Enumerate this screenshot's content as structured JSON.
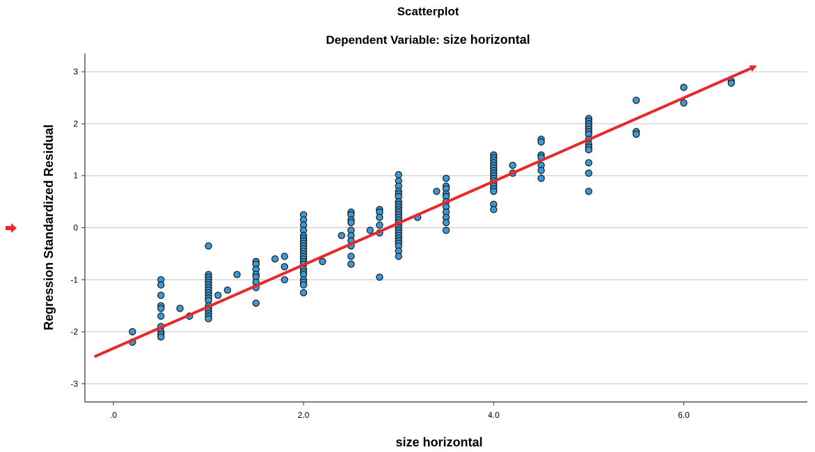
{
  "chart_data": {
    "type": "scatter",
    "title": "Scatterplot",
    "subtitle_prefix": "Dependent Variable: ",
    "subtitle_bold": "size horizontal",
    "xlabel": "size horizontal",
    "ylabel": "Regression Standardized Residual",
    "xlim": [
      -0.3,
      7.3
    ],
    "ylim": [
      -3.35,
      3.35
    ],
    "x_ticks": [
      0,
      2,
      4,
      6
    ],
    "x_tick_labels": [
      ".0",
      "2.0",
      "4.0",
      "6.0"
    ],
    "y_ticks": [
      3,
      2,
      1,
      0,
      -1,
      -2,
      -3
    ],
    "y_tick_labels": [
      "3",
      "2",
      "1",
      "0",
      "-1",
      "-2",
      "-3"
    ],
    "grid": "horizontal",
    "marker_color": "#3b9ad6",
    "marker_edge": "#1a1a1a",
    "points": [
      [
        0.2,
        -2.0
      ],
      [
        0.2,
        -2.2
      ],
      [
        0.5,
        -1.0
      ],
      [
        0.5,
        -1.1
      ],
      [
        0.5,
        -1.3
      ],
      [
        0.5,
        -1.5
      ],
      [
        0.5,
        -1.55
      ],
      [
        0.5,
        -1.7
      ],
      [
        0.5,
        -1.9
      ],
      [
        0.5,
        -2.0
      ],
      [
        0.5,
        -2.05
      ],
      [
        0.5,
        -2.1
      ],
      [
        0.7,
        -1.55
      ],
      [
        0.8,
        -1.7
      ],
      [
        1.0,
        -0.35
      ],
      [
        1.0,
        -0.9
      ],
      [
        1.0,
        -0.95
      ],
      [
        1.0,
        -1.0
      ],
      [
        1.0,
        -1.05
      ],
      [
        1.0,
        -1.1
      ],
      [
        1.0,
        -1.15
      ],
      [
        1.0,
        -1.2
      ],
      [
        1.0,
        -1.25
      ],
      [
        1.0,
        -1.3
      ],
      [
        1.0,
        -1.35
      ],
      [
        1.0,
        -1.4
      ],
      [
        1.0,
        -1.5
      ],
      [
        1.0,
        -1.55
      ],
      [
        1.0,
        -1.6
      ],
      [
        1.0,
        -1.65
      ],
      [
        1.0,
        -1.7
      ],
      [
        1.0,
        -1.75
      ],
      [
        1.1,
        -1.3
      ],
      [
        1.2,
        -1.2
      ],
      [
        1.3,
        -0.9
      ],
      [
        1.5,
        -0.65
      ],
      [
        1.5,
        -0.7
      ],
      [
        1.5,
        -0.8
      ],
      [
        1.5,
        -0.9
      ],
      [
        1.5,
        -0.95
      ],
      [
        1.5,
        -1.05
      ],
      [
        1.5,
        -1.15
      ],
      [
        1.5,
        -1.45
      ],
      [
        1.7,
        -0.6
      ],
      [
        1.8,
        -0.55
      ],
      [
        1.8,
        -0.75
      ],
      [
        1.8,
        -1.0
      ],
      [
        2.0,
        0.25
      ],
      [
        2.0,
        0.15
      ],
      [
        2.0,
        0.05
      ],
      [
        2.0,
        -0.05
      ],
      [
        2.0,
        -0.15
      ],
      [
        2.0,
        -0.2
      ],
      [
        2.0,
        -0.25
      ],
      [
        2.0,
        -0.3
      ],
      [
        2.0,
        -0.35
      ],
      [
        2.0,
        -0.4
      ],
      [
        2.0,
        -0.45
      ],
      [
        2.0,
        -0.5
      ],
      [
        2.0,
        -0.55
      ],
      [
        2.0,
        -0.6
      ],
      [
        2.0,
        -0.65
      ],
      [
        2.0,
        -0.7
      ],
      [
        2.0,
        -0.8
      ],
      [
        2.0,
        -0.85
      ],
      [
        2.0,
        -0.9
      ],
      [
        2.0,
        -1.0
      ],
      [
        2.0,
        -1.05
      ],
      [
        2.0,
        -1.1
      ],
      [
        2.0,
        -1.25
      ],
      [
        2.2,
        -0.65
      ],
      [
        2.4,
        -0.15
      ],
      [
        2.5,
        0.3
      ],
      [
        2.5,
        0.25
      ],
      [
        2.5,
        0.15
      ],
      [
        2.5,
        0.1
      ],
      [
        2.5,
        -0.05
      ],
      [
        2.5,
        -0.15
      ],
      [
        2.5,
        -0.25
      ],
      [
        2.5,
        -0.35
      ],
      [
        2.5,
        -0.55
      ],
      [
        2.5,
        -0.7
      ],
      [
        2.7,
        -0.05
      ],
      [
        2.8,
        0.35
      ],
      [
        2.8,
        0.3
      ],
      [
        2.8,
        0.2
      ],
      [
        2.8,
        0.05
      ],
      [
        2.8,
        -0.1
      ],
      [
        2.8,
        -0.95
      ],
      [
        3.0,
        1.02
      ],
      [
        3.0,
        0.9
      ],
      [
        3.0,
        0.8
      ],
      [
        3.0,
        0.7
      ],
      [
        3.0,
        0.65
      ],
      [
        3.0,
        0.6
      ],
      [
        3.0,
        0.5
      ],
      [
        3.0,
        0.45
      ],
      [
        3.0,
        0.4
      ],
      [
        3.0,
        0.35
      ],
      [
        3.0,
        0.3
      ],
      [
        3.0,
        0.25
      ],
      [
        3.0,
        0.2
      ],
      [
        3.0,
        0.15
      ],
      [
        3.0,
        0.1
      ],
      [
        3.0,
        0.05
      ],
      [
        3.0,
        0.0
      ],
      [
        3.0,
        -0.05
      ],
      [
        3.0,
        -0.1
      ],
      [
        3.0,
        -0.15
      ],
      [
        3.0,
        -0.2
      ],
      [
        3.0,
        -0.25
      ],
      [
        3.0,
        -0.3
      ],
      [
        3.0,
        -0.35
      ],
      [
        3.0,
        -0.45
      ],
      [
        3.0,
        -0.55
      ],
      [
        3.2,
        0.2
      ],
      [
        3.4,
        0.7
      ],
      [
        3.5,
        0.95
      ],
      [
        3.5,
        0.8
      ],
      [
        3.5,
        0.75
      ],
      [
        3.5,
        0.65
      ],
      [
        3.5,
        0.6
      ],
      [
        3.5,
        0.5
      ],
      [
        3.5,
        0.4
      ],
      [
        3.5,
        0.3
      ],
      [
        3.5,
        0.2
      ],
      [
        3.5,
        0.1
      ],
      [
        3.5,
        -0.05
      ],
      [
        4.0,
        1.4
      ],
      [
        4.0,
        1.35
      ],
      [
        4.0,
        1.3
      ],
      [
        4.0,
        1.25
      ],
      [
        4.0,
        1.2
      ],
      [
        4.0,
        1.15
      ],
      [
        4.0,
        1.1
      ],
      [
        4.0,
        1.05
      ],
      [
        4.0,
        1.0
      ],
      [
        4.0,
        0.95
      ],
      [
        4.0,
        0.9
      ],
      [
        4.0,
        0.85
      ],
      [
        4.0,
        0.8
      ],
      [
        4.0,
        0.75
      ],
      [
        4.0,
        0.7
      ],
      [
        4.0,
        0.45
      ],
      [
        4.0,
        0.35
      ],
      [
        4.2,
        1.2
      ],
      [
        4.2,
        1.05
      ],
      [
        4.5,
        1.7
      ],
      [
        4.5,
        1.65
      ],
      [
        4.5,
        1.4
      ],
      [
        4.5,
        1.35
      ],
      [
        4.5,
        1.2
      ],
      [
        4.5,
        1.1
      ],
      [
        4.5,
        0.95
      ],
      [
        5.0,
        2.1
      ],
      [
        5.0,
        2.05
      ],
      [
        5.0,
        2.0
      ],
      [
        5.0,
        1.95
      ],
      [
        5.0,
        1.9
      ],
      [
        5.0,
        1.85
      ],
      [
        5.0,
        1.8
      ],
      [
        5.0,
        1.7
      ],
      [
        5.0,
        1.6
      ],
      [
        5.0,
        1.55
      ],
      [
        5.0,
        1.5
      ],
      [
        5.0,
        1.25
      ],
      [
        5.0,
        1.05
      ],
      [
        5.0,
        0.7
      ],
      [
        5.5,
        2.45
      ],
      [
        5.5,
        1.85
      ],
      [
        5.5,
        1.8
      ],
      [
        6.0,
        2.7
      ],
      [
        6.0,
        2.4
      ],
      [
        6.5,
        2.82
      ],
      [
        6.5,
        2.78
      ]
    ],
    "annotation_arrow": {
      "color": "#e8292a",
      "from": [
        -0.2,
        -2.48
      ],
      "to": [
        6.75,
        3.1
      ]
    },
    "side_marker_color": "#e8292a"
  }
}
